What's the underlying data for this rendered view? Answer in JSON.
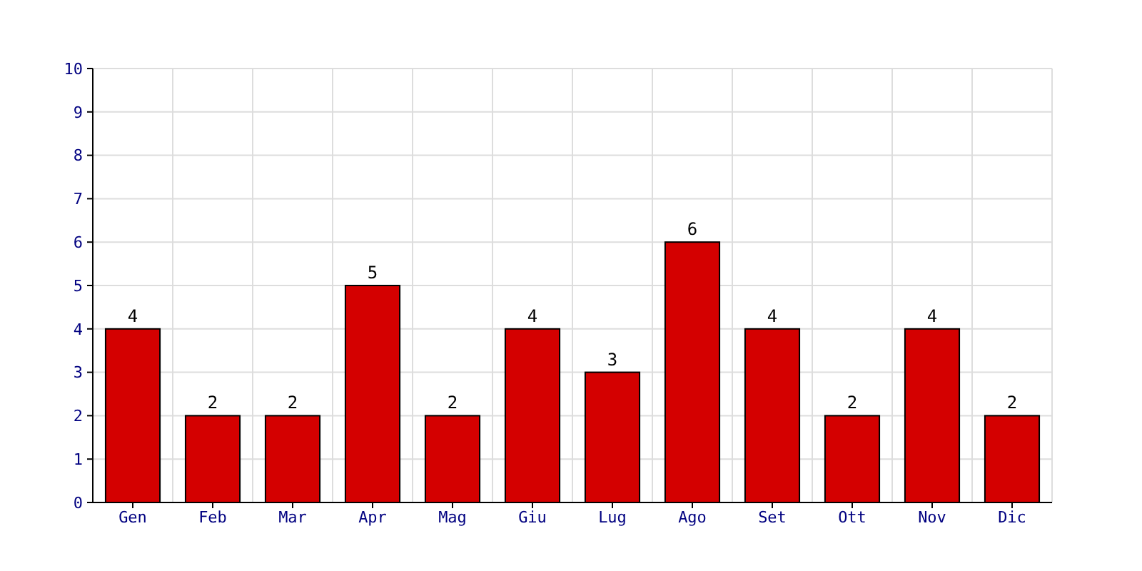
{
  "chart_data": {
    "type": "bar",
    "categories": [
      "Gen",
      "Feb",
      "Mar",
      "Apr",
      "Mag",
      "Giu",
      "Lug",
      "Ago",
      "Set",
      "Ott",
      "Nov",
      "Dic"
    ],
    "values": [
      4,
      2,
      2,
      5,
      2,
      4,
      3,
      6,
      4,
      2,
      4,
      2
    ],
    "color": "#d40000",
    "ylim": [
      0,
      10
    ],
    "yticks": [
      0,
      1,
      2,
      3,
      4,
      5,
      6,
      7,
      8,
      9,
      10
    ],
    "grid": true,
    "data_labels": true
  }
}
